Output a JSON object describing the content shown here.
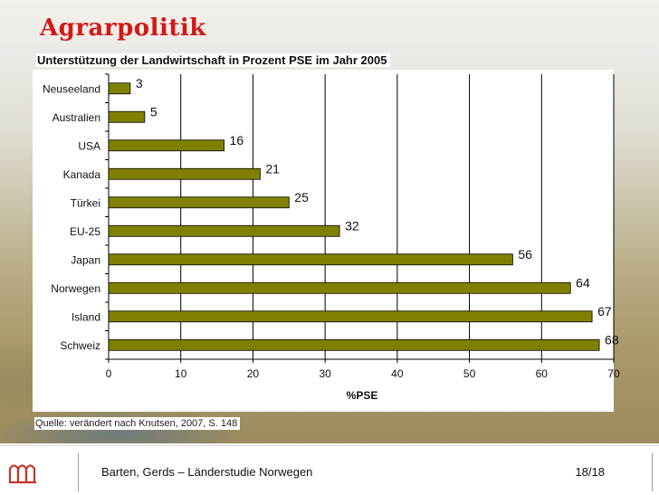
{
  "slide": {
    "title": "Agrarpolitik",
    "subtitle": "Unterstützung der Landwirtschaft in Prozent PSE im Jahr 2005",
    "source": "Quelle: verändert nach Knutsen, 2007, S. 148"
  },
  "footer": {
    "text": "Barten, Gerds – Länderstudie Norwegen",
    "page": "18/18",
    "logo_icon": "university-arch-logo-icon"
  },
  "colors": {
    "title": "#d11a17",
    "bar_fill": "#808000",
    "bar_stroke": "#000000",
    "grid": "#000000"
  },
  "chart_data": {
    "type": "bar",
    "orientation": "horizontal",
    "title": "Unterstützung der Landwirtschaft in Prozent PSE im Jahr 2005",
    "categories": [
      "Neuseeland",
      "Australien",
      "USA",
      "Kanada",
      "Türkei",
      "EU-25",
      "Japan",
      "Norwegen",
      "Island",
      "Schweiz"
    ],
    "values": [
      3,
      5,
      16,
      21,
      25,
      32,
      56,
      64,
      67,
      68
    ],
    "xlabel": "%PSE",
    "ylabel": "",
    "xlim": [
      0,
      70
    ],
    "xticks": [
      0,
      10,
      20,
      30,
      40,
      50,
      60,
      70
    ],
    "grid": true,
    "data_labels": true,
    "legend": "none"
  }
}
